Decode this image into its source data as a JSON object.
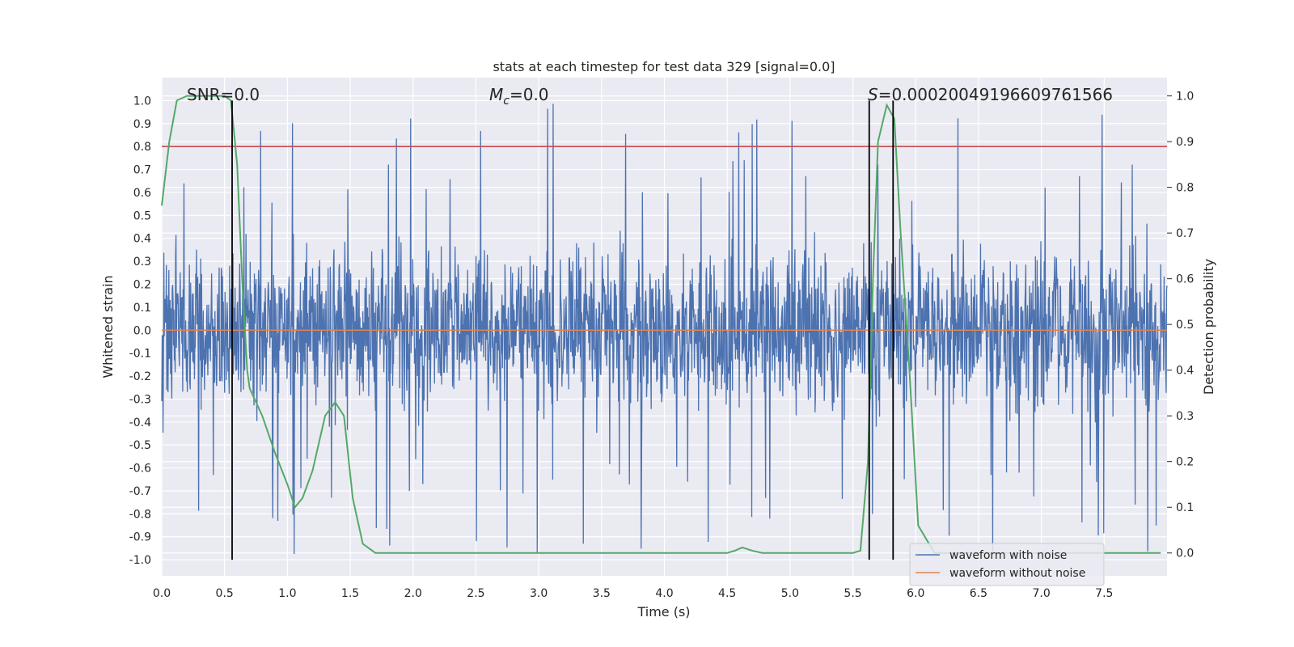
{
  "chart_data": {
    "type": "line",
    "title": "stats at each timestep for test data 329 [signal=0.0]",
    "xlabel": "Time (s)",
    "ylabel_left": "Whitened strain",
    "ylabel_right": "Detection probability",
    "xlim": [
      0.0,
      8.0
    ],
    "ylim_left": [
      -1.07,
      1.1
    ],
    "ylim_right": [
      -0.05,
      1.04
    ],
    "x_ticks": [
      "0.0",
      "0.5",
      "1.0",
      "1.5",
      "2.0",
      "2.5",
      "3.0",
      "3.5",
      "4.0",
      "4.5",
      "5.0",
      "5.5",
      "6.0",
      "6.5",
      "7.0",
      "7.5"
    ],
    "y_left_ticks": [
      "-1.0",
      "-0.9",
      "-0.8",
      "-0.7",
      "-0.6",
      "-0.5",
      "-0.4",
      "-0.3",
      "-0.2",
      "-0.1",
      "0.0",
      "0.1",
      "0.2",
      "0.3",
      "0.4",
      "0.5",
      "0.6",
      "0.7",
      "0.8",
      "0.9",
      "1.0"
    ],
    "y_right_ticks": [
      "0.0",
      "0.1",
      "0.2",
      "0.3",
      "0.4",
      "0.5",
      "0.6",
      "0.7",
      "0.8",
      "0.9",
      "1.0"
    ],
    "annotations": {
      "snr_prefix": "SNR=",
      "snr_value": "0.0",
      "mc_symbol": "M",
      "mc_subscript": "c",
      "mc_value": "=0.0",
      "s_symbol": "S",
      "s_value": "=0.00020049196609761566"
    },
    "threshold": {
      "value": 0.8,
      "axis": "left",
      "color": "#c44e52"
    },
    "vertical_lines": [
      0.56,
      5.63,
      5.82
    ],
    "series": [
      {
        "name": "waveform with noise",
        "color": "#4c72b0",
        "axis": "left",
        "description": "dense whitened noise, typical envelope about +/-0.45, peaks up to about +/-1.0",
        "noise_seed": 329
      },
      {
        "name": "waveform without noise",
        "color": "#dd8452",
        "axis": "left",
        "x": [
          0.0,
          8.0
        ],
        "y": [
          0.0,
          0.0
        ]
      },
      {
        "name": "detection probability",
        "color": "#55a868",
        "axis": "right",
        "x": [
          0.0,
          0.06,
          0.12,
          0.2,
          0.3,
          0.4,
          0.5,
          0.55,
          0.6,
          0.64,
          0.68,
          0.7,
          0.8,
          0.9,
          1.0,
          1.06,
          1.12,
          1.2,
          1.3,
          1.38,
          1.45,
          1.52,
          1.6,
          1.7,
          2.0,
          3.0,
          3.3,
          4.0,
          4.5,
          4.56,
          4.62,
          4.7,
          4.78,
          5.0,
          5.5,
          5.56,
          5.62,
          5.66,
          5.7,
          5.77,
          5.83,
          5.88,
          5.95,
          6.02,
          6.15,
          6.3,
          7.0,
          7.95
        ],
        "y": [
          0.76,
          0.9,
          0.99,
          1.0,
          1.0,
          1.0,
          1.0,
          0.99,
          0.85,
          0.6,
          0.4,
          0.36,
          0.3,
          0.22,
          0.15,
          0.1,
          0.12,
          0.18,
          0.3,
          0.33,
          0.3,
          0.12,
          0.02,
          0.0,
          0.0,
          0.0,
          0.0,
          0.0,
          0.0,
          0.005,
          0.012,
          0.005,
          0.0,
          0.0,
          0.0,
          0.005,
          0.2,
          0.6,
          0.9,
          0.98,
          0.95,
          0.7,
          0.4,
          0.06,
          0.0,
          0.0,
          0.0,
          0.0
        ]
      }
    ],
    "legend": {
      "position": "lower-right",
      "entries": [
        "waveform with noise",
        "waveform without noise"
      ]
    }
  }
}
